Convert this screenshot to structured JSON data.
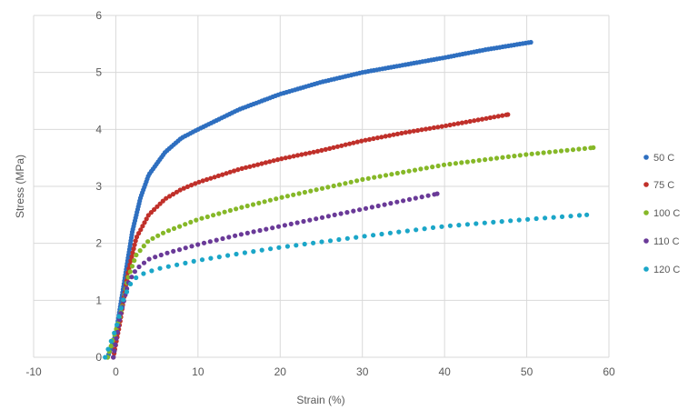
{
  "chart_data": {
    "type": "scatter",
    "title": "",
    "xlabel": "Strain (%)",
    "ylabel": "Stress (MPa)",
    "xlim": [
      -10,
      60
    ],
    "ylim": [
      0,
      6
    ],
    "xticks": [
      "-10",
      "0",
      "10",
      "20",
      "30",
      "40",
      "50",
      "60"
    ],
    "yticks": [
      "0",
      "1",
      "2",
      "3",
      "4",
      "5",
      "6"
    ],
    "grid": true,
    "legend_position": "right",
    "series": [
      {
        "name": "50 C",
        "color": "#2e6fc0",
        "points": [
          [
            -1,
            0
          ],
          [
            0,
            0.4
          ],
          [
            1,
            1.3
          ],
          [
            2,
            2.2
          ],
          [
            3,
            2.8
          ],
          [
            4,
            3.2
          ],
          [
            6,
            3.6
          ],
          [
            8,
            3.85
          ],
          [
            10,
            4.0
          ],
          [
            15,
            4.35
          ],
          [
            20,
            4.62
          ],
          [
            25,
            4.83
          ],
          [
            30,
            5.0
          ],
          [
            35,
            5.13
          ],
          [
            40,
            5.26
          ],
          [
            45,
            5.4
          ],
          [
            50.5,
            5.53
          ]
        ]
      },
      {
        "name": "75 C",
        "color": "#c0302a",
        "points": [
          [
            -0.3,
            0
          ],
          [
            0.5,
            0.6
          ],
          [
            1.5,
            1.5
          ],
          [
            2.5,
            2.1
          ],
          [
            4,
            2.5
          ],
          [
            6,
            2.78
          ],
          [
            8,
            2.95
          ],
          [
            10,
            3.07
          ],
          [
            15,
            3.3
          ],
          [
            20,
            3.48
          ],
          [
            25,
            3.63
          ],
          [
            30,
            3.8
          ],
          [
            35,
            3.94
          ],
          [
            40,
            4.06
          ],
          [
            47.7,
            4.26
          ]
        ]
      },
      {
        "name": "100 C",
        "color": "#86b828",
        "points": [
          [
            -1,
            0
          ],
          [
            0.5,
            0.7
          ],
          [
            1.5,
            1.4
          ],
          [
            2.5,
            1.8
          ],
          [
            4,
            2.05
          ],
          [
            6,
            2.2
          ],
          [
            10,
            2.42
          ],
          [
            15,
            2.62
          ],
          [
            20,
            2.8
          ],
          [
            30,
            3.12
          ],
          [
            40,
            3.38
          ],
          [
            50,
            3.56
          ],
          [
            58.1,
            3.68
          ]
        ]
      },
      {
        "name": "110 C",
        "color": "#6a3a98",
        "points": [
          [
            -0.3,
            0
          ],
          [
            0.5,
            0.7
          ],
          [
            1.5,
            1.3
          ],
          [
            2.5,
            1.55
          ],
          [
            4,
            1.72
          ],
          [
            6,
            1.82
          ],
          [
            10,
            1.98
          ],
          [
            15,
            2.15
          ],
          [
            20,
            2.3
          ],
          [
            30,
            2.6
          ],
          [
            39.1,
            2.87
          ]
        ]
      },
      {
        "name": "120 C",
        "color": "#1ba6c8",
        "points": [
          [
            -1.3,
            0
          ],
          [
            0,
            0.5
          ],
          [
            1,
            1.05
          ],
          [
            2,
            1.35
          ],
          [
            3,
            1.45
          ],
          [
            5,
            1.55
          ],
          [
            10,
            1.7
          ],
          [
            15,
            1.82
          ],
          [
            20,
            1.93
          ],
          [
            30,
            2.12
          ],
          [
            40,
            2.3
          ],
          [
            50,
            2.42
          ],
          [
            57.3,
            2.5
          ]
        ]
      }
    ]
  }
}
